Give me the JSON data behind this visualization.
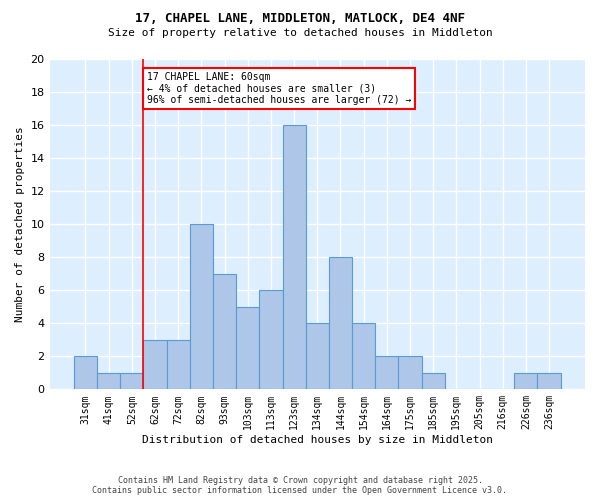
{
  "title1": "17, CHAPEL LANE, MIDDLETON, MATLOCK, DE4 4NF",
  "title2": "Size of property relative to detached houses in Middleton",
  "xlabel": "Distribution of detached houses by size in Middleton",
  "ylabel": "Number of detached properties",
  "footnote1": "Contains HM Land Registry data © Crown copyright and database right 2025.",
  "footnote2": "Contains public sector information licensed under the Open Government Licence v3.0.",
  "categories": [
    "31sqm",
    "41sqm",
    "52sqm",
    "62sqm",
    "72sqm",
    "82sqm",
    "93sqm",
    "103sqm",
    "113sqm",
    "123sqm",
    "134sqm",
    "144sqm",
    "154sqm",
    "164sqm",
    "175sqm",
    "185sqm",
    "195sqm",
    "205sqm",
    "216sqm",
    "226sqm",
    "236sqm"
  ],
  "values": [
    2,
    1,
    1,
    3,
    3,
    10,
    7,
    5,
    6,
    16,
    4,
    8,
    4,
    2,
    2,
    1,
    0,
    0,
    0,
    1,
    1
  ],
  "bar_color": "#aec6e8",
  "bar_edge_color": "#5b9bd5",
  "vline_index": 3,
  "vline_color": "red",
  "annotation_text": "17 CHAPEL LANE: 60sqm\n← 4% of detached houses are smaller (3)\n96% of semi-detached houses are larger (72) →",
  "annotation_box_color": "white",
  "annotation_box_edge": "red",
  "bg_color": "#ddeeff",
  "grid_color": "white",
  "ylim": [
    0,
    20
  ],
  "yticks": [
    0,
    2,
    4,
    6,
    8,
    10,
    12,
    14,
    16,
    18,
    20
  ]
}
